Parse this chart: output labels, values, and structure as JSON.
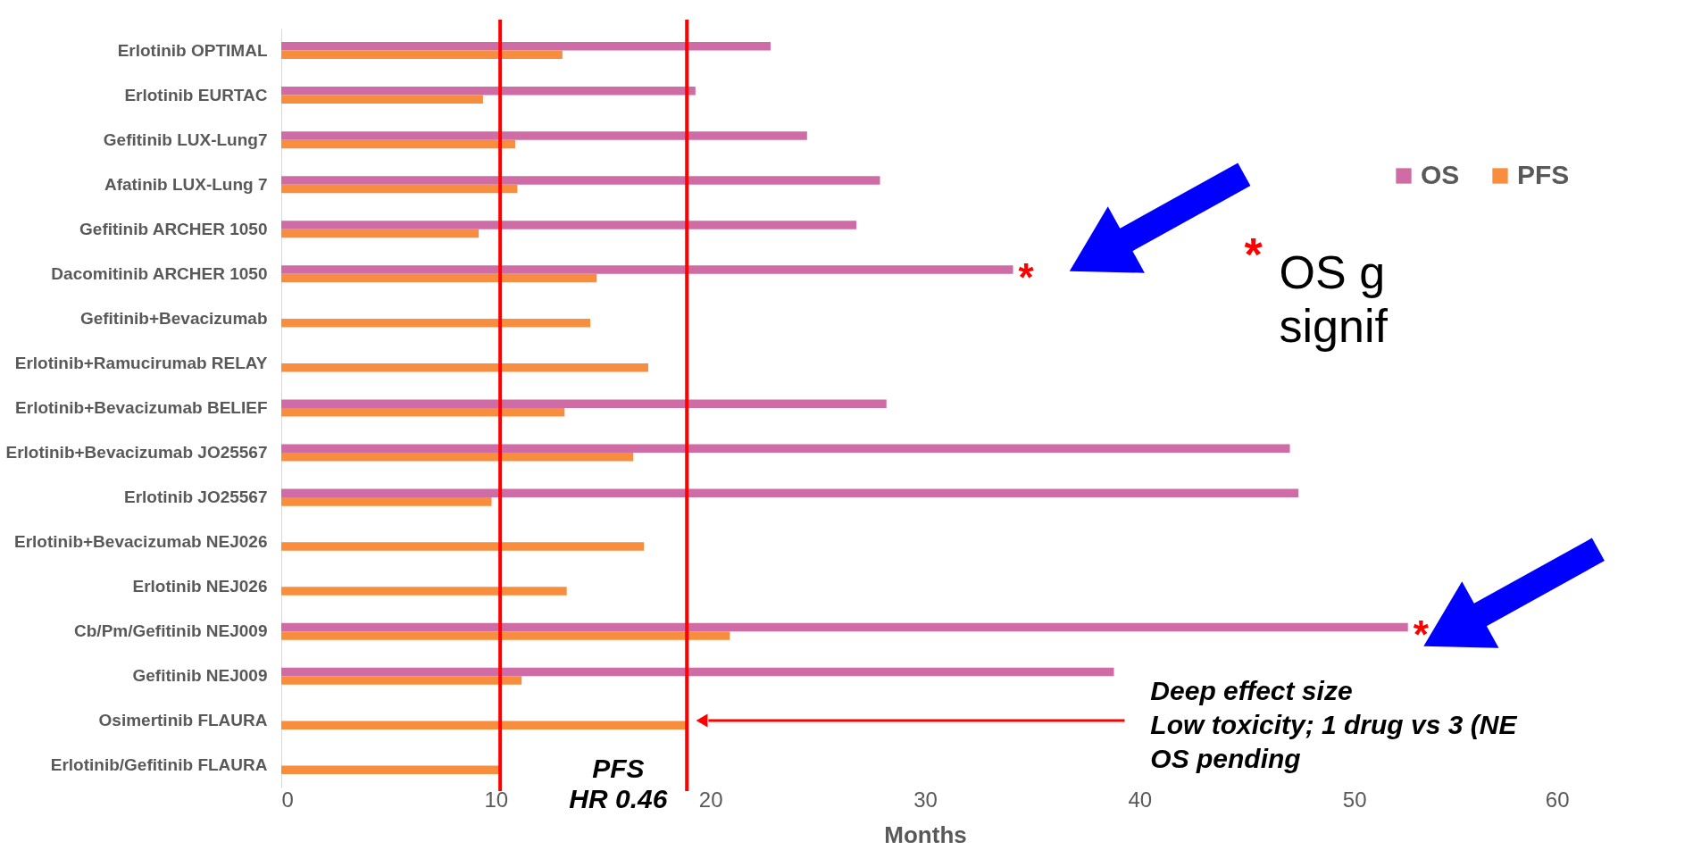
{
  "chart_data": {
    "type": "bar",
    "orientation": "horizontal",
    "xlabel": "Months",
    "categories": [
      "Erlotinib OPTIMAL",
      "Erlotinib EURTAC",
      "Gefitinib LUX-Lung7",
      "Afatinib LUX-Lung 7",
      "Gefitinib ARCHER 1050",
      "Dacomitinib ARCHER 1050",
      "Gefitinib+Bevacizumab",
      "Erlotinib+Ramucirumab RELAY",
      "Erlotinib+Bevacizumab BELIEF",
      "Erlotinib+Bevacizumab JO25567",
      "Erlotinib JO25567",
      "Erlotinib+Bevacizumab NEJ026",
      "Erlotinib NEJ026",
      "Cb/Pm/Gefitinib NEJ009",
      "Gefitinib NEJ009",
      "Osimertinib FLAURA",
      "Erlotinib/Gefitinib FLAURA"
    ],
    "series": [
      {
        "name": "OS",
        "color": "#d06ca5",
        "values": [
          22.8,
          19.3,
          24.5,
          27.9,
          26.8,
          34.1,
          null,
          null,
          28.2,
          47.0,
          47.4,
          null,
          null,
          52.5,
          38.8,
          null,
          null
        ]
      },
      {
        "name": "PFS",
        "color": "#f98d3e",
        "values": [
          13.1,
          9.4,
          10.9,
          11.0,
          9.2,
          14.7,
          14.4,
          17.1,
          13.2,
          16.4,
          9.8,
          16.9,
          13.3,
          20.9,
          11.2,
          18.9,
          10.2
        ]
      }
    ],
    "xlim": [
      0,
      60
    ],
    "xticks": [
      0,
      10,
      20,
      30,
      40,
      50,
      60
    ],
    "ref_lines": [
      {
        "axis": "x",
        "value": 10.2,
        "color": "#ff0000"
      },
      {
        "axis": "x",
        "value": 18.9,
        "color": "#ff0000"
      }
    ],
    "annotations": [
      "PFS\nHR 0.46",
      {
        "text": "*",
        "x": 34.1,
        "y": "Dacomitinib ARCHER 1050"
      },
      {
        "text": "*",
        "x": 52.5,
        "y": "Cb/Pm/Gefitinib NEJ009"
      },
      "*",
      "OS g\nsignif",
      "Deep effect size\nLow toxicity; 1 drug vs 3 (NE\nOS pending"
    ],
    "legend": "top right",
    "grid": false
  }
}
